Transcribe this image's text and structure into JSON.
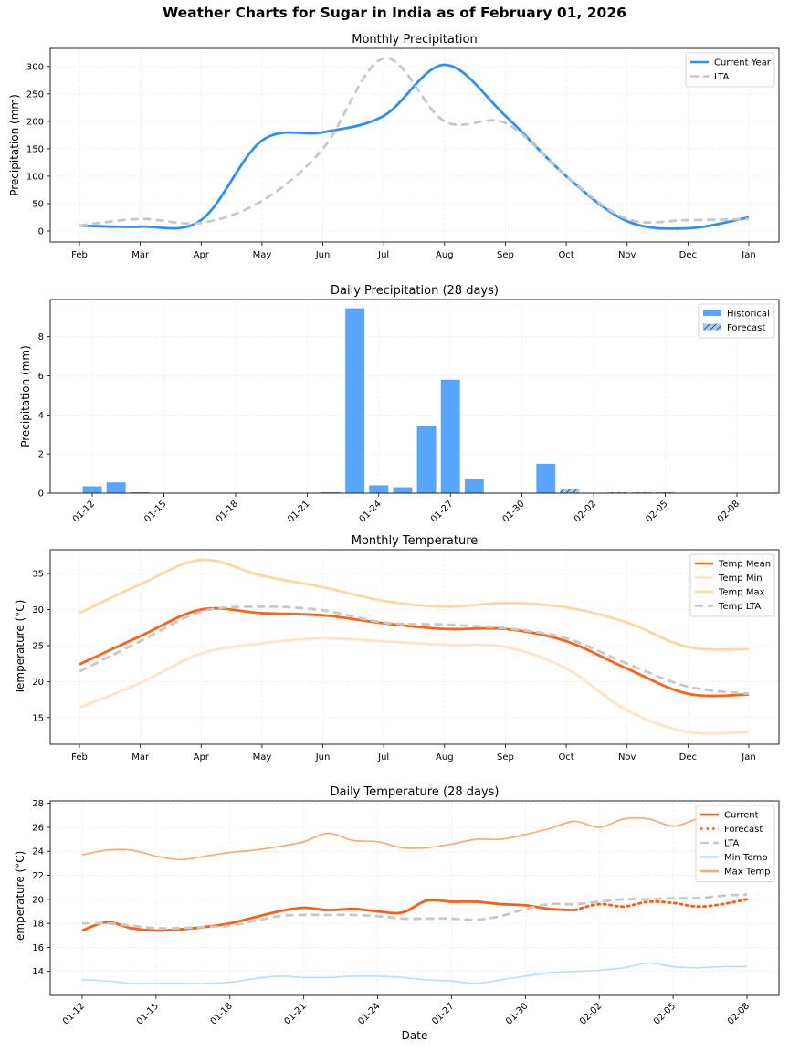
{
  "title": "Weather Charts for Sugar in India as of February 01, 2026",
  "chart_data": [
    {
      "type": "line",
      "title": "Monthly Precipitation",
      "xlabel": "",
      "ylabel": "Precipitation (mm)",
      "x": [
        "Feb",
        "Mar",
        "Apr",
        "May",
        "Jun",
        "Jul",
        "Aug",
        "Sep",
        "Oct",
        "Nov",
        "Dec",
        "Jan"
      ],
      "xticks": [
        "Feb",
        "Mar",
        "Apr",
        "May",
        "Jun",
        "Jul",
        "Aug",
        "Sep",
        "Oct",
        "Nov",
        "Dec",
        "Jan"
      ],
      "yticks": [
        0,
        50,
        100,
        150,
        200,
        250,
        300
      ],
      "ylim": [
        -20,
        333
      ],
      "grid": true,
      "legend": "top-right",
      "series": [
        {
          "name": "Current Year",
          "values": [
            10,
            8,
            20,
            165,
            180,
            210,
            303,
            210,
            100,
            18,
            5,
            25
          ],
          "color": "#2f8ff5",
          "style": "solid"
        },
        {
          "name": "LTA",
          "values": [
            10,
            22,
            15,
            55,
            150,
            315,
            200,
            197,
            100,
            22,
            20,
            22
          ],
          "color": "#c8c8c8",
          "style": "dashed"
        }
      ]
    },
    {
      "type": "bar",
      "title": "Daily Precipitation (28 days)",
      "xlabel": "",
      "ylabel": "Precipitation (mm)",
      "x": [
        "01-12",
        "01-13",
        "01-14",
        "01-15",
        "01-16",
        "01-17",
        "01-18",
        "01-19",
        "01-20",
        "01-21",
        "01-22",
        "01-23",
        "01-24",
        "01-25",
        "01-26",
        "01-27",
        "01-28",
        "01-29",
        "01-30",
        "01-31",
        "02-01",
        "02-02",
        "02-03",
        "02-04",
        "02-05",
        "02-06",
        "02-07",
        "02-08"
      ],
      "xticks": [
        "01-12",
        "01-15",
        "01-18",
        "01-21",
        "01-24",
        "01-27",
        "01-30",
        "02-02",
        "02-05",
        "02-08"
      ],
      "yticks": [
        0,
        2,
        4,
        6,
        8
      ],
      "ylim": [
        0,
        9.9
      ],
      "grid": true,
      "legend": "top-right",
      "series": [
        {
          "name": "Historical",
          "values": [
            0.35,
            0.55,
            0.05,
            0,
            0,
            0,
            0,
            0,
            0,
            0,
            0.05,
            9.45,
            0.4,
            0.3,
            3.45,
            5.8,
            0.7,
            0,
            0,
            1.5,
            null,
            null,
            null,
            null,
            null,
            null,
            null,
            null
          ],
          "color": "#58a6ff",
          "style": "solid"
        },
        {
          "name": "Forecast",
          "values": [
            null,
            null,
            null,
            null,
            null,
            null,
            null,
            null,
            null,
            null,
            null,
            null,
            null,
            null,
            null,
            null,
            null,
            null,
            null,
            null,
            0.2,
            0,
            0.05,
            0.05,
            0.05,
            0,
            0,
            0
          ],
          "color": "#9ccaf5",
          "style": "hatched"
        }
      ]
    },
    {
      "type": "line",
      "title": "Monthly Temperature",
      "xlabel": "",
      "ylabel": "Temperature (°C)",
      "x": [
        "Feb",
        "Mar",
        "Apr",
        "May",
        "Jun",
        "Jul",
        "Aug",
        "Sep",
        "Oct",
        "Nov",
        "Dec",
        "Jan"
      ],
      "xticks": [
        "Feb",
        "Mar",
        "Apr",
        "May",
        "Jun",
        "Jul",
        "Aug",
        "Sep",
        "Oct",
        "Nov",
        "Dec",
        "Jan"
      ],
      "yticks": [
        15,
        20,
        25,
        30,
        35
      ],
      "ylim": [
        11.3,
        38.3
      ],
      "grid": true,
      "legend": "top-right",
      "series": [
        {
          "name": "Temp Mean",
          "values": [
            22.4,
            26.3,
            30.0,
            29.5,
            29.2,
            28.1,
            27.3,
            27.3,
            25.6,
            21.8,
            18.3,
            18.2
          ],
          "color": "#ff6314",
          "style": "solid"
        },
        {
          "name": "Temp Min",
          "values": [
            16.4,
            19.8,
            23.9,
            25.3,
            26.0,
            25.6,
            25.1,
            24.8,
            21.8,
            16.0,
            13.0,
            13.0
          ],
          "color": "#ffe4cc",
          "style": "solid"
        },
        {
          "name": "Temp Max",
          "values": [
            29.5,
            33.5,
            36.9,
            34.7,
            33.1,
            31.2,
            30.4,
            30.9,
            30.3,
            28.2,
            24.8,
            24.5
          ],
          "color": "#fcd8a4",
          "style": "solid"
        },
        {
          "name": "Temp LTA",
          "values": [
            21.4,
            25.6,
            29.7,
            30.4,
            29.9,
            28.2,
            27.9,
            27.4,
            26.0,
            22.5,
            19.3,
            18.3
          ],
          "color": "#c8c8c8",
          "style": "dashed"
        }
      ]
    },
    {
      "type": "line",
      "title": "Daily Temperature (28 days)",
      "xlabel": "Date",
      "ylabel": "Temperature (°C)",
      "x": [
        "01-12",
        "01-13",
        "01-14",
        "01-15",
        "01-16",
        "01-17",
        "01-18",
        "01-19",
        "01-20",
        "01-21",
        "01-22",
        "01-23",
        "01-24",
        "01-25",
        "01-26",
        "01-27",
        "01-28",
        "01-29",
        "01-30",
        "01-31",
        "02-01",
        "02-02",
        "02-03",
        "02-04",
        "02-05",
        "02-06",
        "02-07",
        "02-08"
      ],
      "xticks": [
        "01-12",
        "01-15",
        "01-18",
        "01-21",
        "01-24",
        "01-27",
        "01-30",
        "02-02",
        "02-05",
        "02-08"
      ],
      "yticks": [
        14,
        16,
        18,
        20,
        22,
        24,
        26,
        28
      ],
      "ylim": [
        12.0,
        28.2
      ],
      "grid": true,
      "legend": "top-right",
      "series": [
        {
          "name": "Current",
          "values": [
            17.4,
            18.1,
            17.6,
            17.4,
            17.5,
            17.7,
            18.0,
            18.5,
            19.0,
            19.3,
            19.1,
            19.2,
            19.0,
            18.9,
            19.9,
            19.8,
            19.8,
            19.6,
            19.5,
            19.2,
            19.1,
            null,
            null,
            null,
            null,
            null,
            null,
            null
          ],
          "color": "#ff5f15",
          "style": "solid"
        },
        {
          "name": "Forecast",
          "values": [
            null,
            null,
            null,
            null,
            null,
            null,
            null,
            null,
            null,
            null,
            null,
            null,
            null,
            null,
            null,
            null,
            null,
            null,
            null,
            null,
            19.1,
            19.6,
            19.4,
            19.8,
            19.7,
            19.4,
            19.6,
            20.0
          ],
          "color": "#ff5f15",
          "style": "dotted"
        },
        {
          "name": "LTA",
          "values": [
            18.0,
            18.0,
            17.8,
            17.6,
            17.6,
            17.7,
            17.8,
            18.2,
            18.6,
            18.7,
            18.7,
            18.7,
            18.6,
            18.4,
            18.4,
            18.4,
            18.3,
            18.6,
            19.2,
            19.6,
            19.6,
            19.8,
            20.0,
            20.0,
            20.1,
            20.1,
            20.3,
            20.4
          ],
          "color": "#c8c8c8",
          "style": "dashed"
        },
        {
          "name": "Min Temp",
          "values": [
            13.3,
            13.2,
            13.0,
            13.0,
            13.0,
            13.0,
            13.1,
            13.4,
            13.6,
            13.5,
            13.5,
            13.6,
            13.6,
            13.5,
            13.3,
            13.2,
            13.0,
            13.3,
            13.6,
            13.9,
            14.0,
            14.1,
            14.3,
            14.7,
            14.4,
            14.3,
            14.4,
            14.4
          ],
          "color": "#bcdcff",
          "style": "solid"
        },
        {
          "name": "Max Temp",
          "values": [
            23.7,
            24.1,
            24.1,
            23.6,
            23.3,
            23.6,
            23.9,
            24.1,
            24.4,
            24.8,
            25.5,
            24.9,
            24.8,
            24.3,
            24.3,
            24.6,
            25.0,
            25.0,
            25.4,
            25.9,
            26.5,
            26.0,
            26.7,
            26.7,
            26.1,
            26.7,
            27.0,
            27.2
          ],
          "color": "#ffa86e",
          "style": "solid"
        }
      ]
    }
  ]
}
